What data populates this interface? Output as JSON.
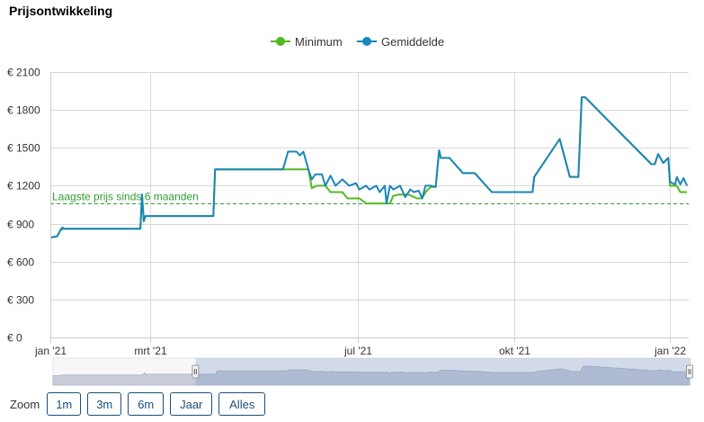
{
  "page": {
    "title": "Prijsontwikkeling"
  },
  "legend": [
    {
      "name": "Minimum",
      "color": "#52b920"
    },
    {
      "name": "Gemiddelde",
      "color": "#1b86b8"
    }
  ],
  "zoom": {
    "label": "Zoom",
    "buttons": [
      "1m",
      "3m",
      "6m",
      "Jaar",
      "Alles"
    ]
  },
  "chart_data": {
    "type": "line",
    "title": "Prijsontwikkeling",
    "xlabel": "",
    "ylabel": "",
    "ylim": [
      0,
      2100
    ],
    "y_ticks": [
      0,
      300,
      600,
      900,
      1200,
      1500,
      1800,
      2100
    ],
    "y_tick_labels": [
      "€ 0",
      "€ 300",
      "€ 600",
      "€ 900",
      "€ 1200",
      "€ 1500",
      "€ 1800",
      "€ 2100"
    ],
    "x_range": [
      "2021-01-01",
      "2022-01-12"
    ],
    "x_ticks": [
      "2021-01-01",
      "2021-03-01",
      "2021-07-01",
      "2021-10-01",
      "2022-01-01"
    ],
    "x_tick_labels": [
      "jan '21",
      "mrt '21",
      "jul '21",
      "okt '21",
      "jan '22"
    ],
    "grid": true,
    "legend_position": "top-center",
    "reference_line": {
      "label": "Laagste prijs sinds 6 maanden",
      "value": 1060,
      "color": "#2e9e2e"
    },
    "series": [
      {
        "name": "Minimum",
        "color": "#52b920",
        "points": [
          [
            "2021-01-01",
            790
          ],
          [
            "2021-01-05",
            800
          ],
          [
            "2021-01-07",
            850
          ],
          [
            "2021-01-09",
            860
          ],
          [
            "2021-02-23",
            860
          ],
          [
            "2021-02-24",
            1130
          ],
          [
            "2021-02-25",
            920
          ],
          [
            "2021-02-26",
            960
          ],
          [
            "2021-04-07",
            960
          ],
          [
            "2021-04-08",
            1330
          ],
          [
            "2021-05-30",
            1330
          ],
          [
            "2021-06-02",
            1330
          ],
          [
            "2021-06-04",
            1180
          ],
          [
            "2021-06-07",
            1200
          ],
          [
            "2021-06-12",
            1200
          ],
          [
            "2021-06-15",
            1150
          ],
          [
            "2021-06-22",
            1150
          ],
          [
            "2021-06-25",
            1100
          ],
          [
            "2021-07-02",
            1100
          ],
          [
            "2021-07-06",
            1060
          ],
          [
            "2021-07-16",
            1060
          ],
          [
            "2021-07-20",
            1060
          ],
          [
            "2021-07-22",
            1120
          ],
          [
            "2021-07-25",
            1130
          ],
          [
            "2021-07-31",
            1130
          ],
          [
            "2021-08-05",
            1100
          ],
          [
            "2021-08-08",
            1100
          ],
          [
            "2021-08-10",
            1150
          ],
          [
            "2021-08-13",
            1190
          ],
          [
            "2021-08-16",
            1190
          ],
          [
            "2021-08-18",
            1480
          ],
          [
            "2021-08-19",
            1420
          ],
          [
            "2021-08-24",
            1420
          ],
          [
            "2021-09-01",
            1300
          ],
          [
            "2021-09-08",
            1300
          ],
          [
            "2021-09-18",
            1150
          ],
          [
            "2021-10-12",
            1150
          ],
          [
            "2021-10-13",
            1270
          ],
          [
            "2021-10-28",
            1570
          ],
          [
            "2021-11-03",
            1270
          ],
          [
            "2021-11-08",
            1270
          ],
          [
            "2021-11-10",
            1900
          ],
          [
            "2021-11-12",
            1900
          ],
          [
            "2021-12-21",
            1370
          ],
          [
            "2021-12-23",
            1370
          ],
          [
            "2021-12-25",
            1450
          ],
          [
            "2021-12-28",
            1380
          ],
          [
            "2021-12-31",
            1420
          ],
          [
            "2022-01-01",
            1200
          ],
          [
            "2022-01-05",
            1200
          ],
          [
            "2022-01-07",
            1150
          ],
          [
            "2022-01-11",
            1150
          ]
        ]
      },
      {
        "name": "Gemiddelde",
        "color": "#1b86b8",
        "points": [
          [
            "2021-01-01",
            790
          ],
          [
            "2021-01-05",
            800
          ],
          [
            "2021-01-07",
            850
          ],
          [
            "2021-01-08",
            870
          ],
          [
            "2021-01-09",
            860
          ],
          [
            "2021-02-23",
            860
          ],
          [
            "2021-02-24",
            1130
          ],
          [
            "2021-02-25",
            920
          ],
          [
            "2021-02-26",
            960
          ],
          [
            "2021-04-07",
            960
          ],
          [
            "2021-04-08",
            1330
          ],
          [
            "2021-05-18",
            1330
          ],
          [
            "2021-05-21",
            1470
          ],
          [
            "2021-05-26",
            1470
          ],
          [
            "2021-05-28",
            1440
          ],
          [
            "2021-05-30",
            1470
          ],
          [
            "2021-06-02",
            1330
          ],
          [
            "2021-06-04",
            1250
          ],
          [
            "2021-06-06",
            1290
          ],
          [
            "2021-06-10",
            1290
          ],
          [
            "2021-06-12",
            1200
          ],
          [
            "2021-06-15",
            1280
          ],
          [
            "2021-06-18",
            1200
          ],
          [
            "2021-06-22",
            1250
          ],
          [
            "2021-06-26",
            1200
          ],
          [
            "2021-06-30",
            1220
          ],
          [
            "2021-07-02",
            1170
          ],
          [
            "2021-07-06",
            1200
          ],
          [
            "2021-07-08",
            1170
          ],
          [
            "2021-07-12",
            1200
          ],
          [
            "2021-07-14",
            1150
          ],
          [
            "2021-07-17",
            1200
          ],
          [
            "2021-07-18",
            1060
          ],
          [
            "2021-07-20",
            1200
          ],
          [
            "2021-07-22",
            1170
          ],
          [
            "2021-07-26",
            1200
          ],
          [
            "2021-07-29",
            1110
          ],
          [
            "2021-08-01",
            1170
          ],
          [
            "2021-08-03",
            1150
          ],
          [
            "2021-08-06",
            1160
          ],
          [
            "2021-08-08",
            1100
          ],
          [
            "2021-08-10",
            1200
          ],
          [
            "2021-08-13",
            1200
          ],
          [
            "2021-08-16",
            1190
          ],
          [
            "2021-08-18",
            1480
          ],
          [
            "2021-08-19",
            1420
          ],
          [
            "2021-08-24",
            1420
          ],
          [
            "2021-09-01",
            1300
          ],
          [
            "2021-09-08",
            1300
          ],
          [
            "2021-09-18",
            1150
          ],
          [
            "2021-10-12",
            1150
          ],
          [
            "2021-10-13",
            1270
          ],
          [
            "2021-10-28",
            1570
          ],
          [
            "2021-11-03",
            1270
          ],
          [
            "2021-11-08",
            1270
          ],
          [
            "2021-11-10",
            1900
          ],
          [
            "2021-11-12",
            1900
          ],
          [
            "2021-12-21",
            1370
          ],
          [
            "2021-12-23",
            1370
          ],
          [
            "2021-12-25",
            1450
          ],
          [
            "2021-12-28",
            1380
          ],
          [
            "2021-12-31",
            1420
          ],
          [
            "2022-01-01",
            1230
          ],
          [
            "2022-01-04",
            1210
          ],
          [
            "2022-01-05",
            1270
          ],
          [
            "2022-01-07",
            1210
          ],
          [
            "2022-01-09",
            1260
          ],
          [
            "2022-01-11",
            1200
          ]
        ]
      }
    ]
  }
}
